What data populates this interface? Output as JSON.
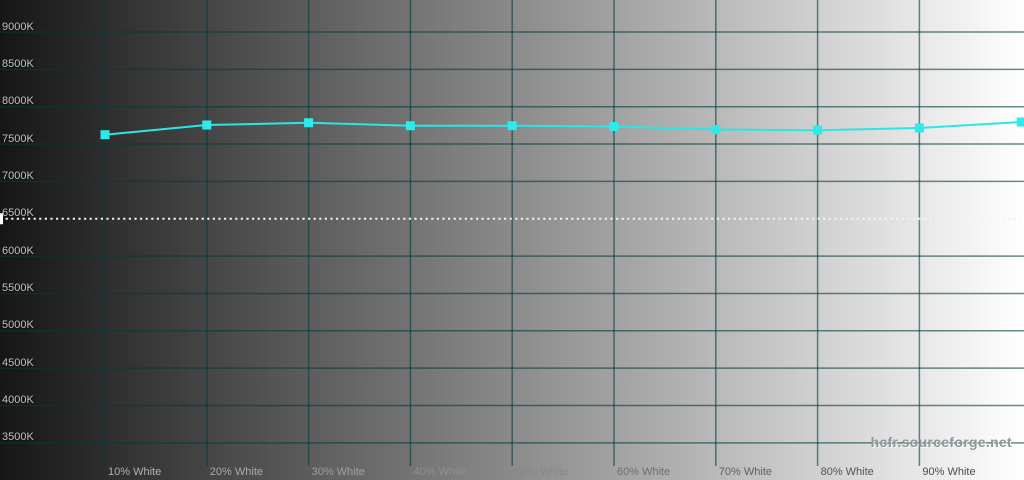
{
  "watermark": "hcfr.sourceforge.net",
  "colors": {
    "background_left": "#161616",
    "background_right": "#ffffff",
    "gridline": "rgba(0,60,60,0.6)",
    "curve": "#27e7e7",
    "marker": "#2feaea",
    "reference_dash": "#eef4f4",
    "reference_tick": "#ffffff",
    "y_label": "#bfc3c3",
    "watermark": "#8f979a",
    "x_label_shades": [
      "#b2b2b2",
      "#ababab",
      "#a0a0a0",
      "#8f8f8f",
      "#878787",
      "#6e6e6e",
      "#5e5e5e",
      "#545454",
      "#4d4d4d"
    ]
  },
  "chart_data": {
    "type": "line",
    "x_percent": [
      10,
      20,
      30,
      40,
      50,
      60,
      70,
      80,
      90,
      100
    ],
    "values_kelvin": [
      7625,
      7755,
      7785,
      7745,
      7745,
      7735,
      7695,
      7685,
      7715,
      7795
    ],
    "x_tick_labels": [
      "10% White",
      "20% White",
      "30% White",
      "40% White",
      "50% White",
      "60% White",
      "70% White",
      "80% White",
      "90% White"
    ],
    "y_tick_labels": [
      "9000K",
      "8500K",
      "8000K",
      "7500K",
      "7000K",
      "6500K",
      "6000K",
      "5500K",
      "5000K",
      "4500K",
      "4000K",
      "3500K"
    ],
    "y_ticks_kelvin": [
      9000,
      8500,
      8000,
      7500,
      7000,
      6500,
      6000,
      5500,
      5000,
      4500,
      4000,
      3500
    ],
    "ylim": [
      3500,
      9000
    ],
    "y_step": 500,
    "reference_line_kelvin": 6500,
    "grid": "on",
    "legend": "none",
    "background": "horizontal gradient dark-to-white"
  }
}
